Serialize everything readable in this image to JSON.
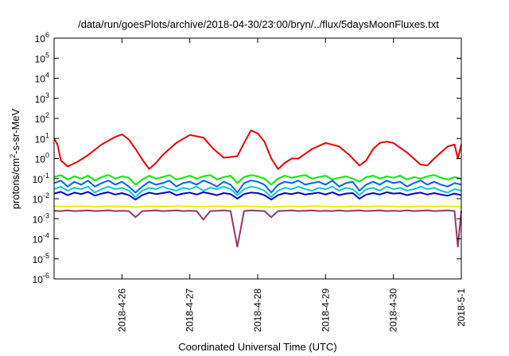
{
  "chart_data": {
    "type": "line",
    "title": "/data/run/goesPlots/archive/2018-04-30/23:00/bryn/../flux/5daysMoonFluxes.txt",
    "xlabel": "Coordinated Universal Time (UTC)",
    "ylabel": {
      "prefix": "protons/cm",
      "sup": "2",
      "suffix": "-s-sr-MeV"
    },
    "yscale": "log",
    "ylim_exp": [
      -6,
      6
    ],
    "y_tick_exponents": [
      -6,
      -5,
      -4,
      -3,
      -2,
      -1,
      0,
      1,
      2,
      3,
      4,
      5,
      6
    ],
    "x_ticks": [
      "2018-4-26",
      "2018-4-27",
      "2018-4-28",
      "2018-4-29",
      "2018-4-30",
      "2018-5-1"
    ],
    "xlim": [
      "2018-04-25T00:00",
      "2018-05-01T00:00"
    ],
    "grid": false,
    "legend": false,
    "series": [
      {
        "color": "#ee0000",
        "x": [
          25.0,
          25.05,
          25.1,
          25.2,
          25.35,
          25.5,
          25.7,
          25.9,
          26.0,
          26.1,
          26.2,
          26.3,
          26.4,
          26.5,
          26.6,
          26.8,
          27.0,
          27.2,
          27.35,
          27.5,
          27.7,
          27.8,
          27.9,
          28.0,
          28.1,
          28.2,
          28.3,
          28.4,
          28.5,
          28.6,
          28.8,
          29.0,
          29.2,
          29.35,
          29.5,
          29.6,
          29.7,
          29.8,
          29.9,
          30.0,
          30.2,
          30.4,
          30.5,
          30.6,
          30.8,
          30.9,
          30.95,
          31.0
        ],
        "y": [
          10.0,
          5.0,
          0.8,
          0.4,
          0.7,
          1.5,
          5.0,
          12.0,
          16.0,
          9.0,
          3.0,
          0.9,
          0.3,
          0.6,
          1.5,
          6.0,
          15.0,
          11.0,
          3.0,
          1.1,
          1.3,
          6.0,
          25.0,
          18.0,
          7.0,
          1.0,
          0.3,
          0.6,
          1.0,
          1.0,
          3.0,
          6.0,
          4.0,
          1.5,
          0.45,
          0.8,
          3.0,
          6.0,
          7.0,
          6.0,
          2.0,
          0.5,
          0.45,
          1.0,
          4.0,
          5.0,
          1.0,
          5.0
        ]
      },
      {
        "color": "#00ee00",
        "x": [
          25.0,
          25.1,
          25.2,
          25.3,
          25.4,
          25.5,
          25.6,
          25.7,
          25.8,
          25.9,
          26.0,
          26.1,
          26.2,
          26.3,
          26.4,
          26.5,
          26.6,
          26.7,
          26.8,
          26.9,
          27.0,
          27.1,
          27.2,
          27.3,
          27.4,
          27.5,
          27.6,
          27.7,
          27.8,
          27.9,
          28.0,
          28.1,
          28.2,
          28.3,
          28.4,
          28.5,
          28.6,
          28.7,
          28.8,
          28.9,
          29.0,
          29.1,
          29.2,
          29.3,
          29.4,
          29.5,
          29.6,
          29.7,
          29.8,
          29.9,
          30.0,
          30.1,
          30.2,
          30.3,
          30.4,
          30.5,
          30.6,
          30.7,
          30.8,
          30.9,
          31.0
        ],
        "y": [
          0.12,
          0.15,
          0.09,
          0.13,
          0.1,
          0.14,
          0.08,
          0.12,
          0.15,
          0.1,
          0.13,
          0.11,
          0.05,
          0.09,
          0.14,
          0.1,
          0.12,
          0.15,
          0.09,
          0.11,
          0.14,
          0.1,
          0.13,
          0.15,
          0.09,
          0.12,
          0.14,
          0.06,
          0.12,
          0.15,
          0.13,
          0.1,
          0.05,
          0.1,
          0.14,
          0.11,
          0.13,
          0.15,
          0.1,
          0.12,
          0.14,
          0.09,
          0.11,
          0.13,
          0.1,
          0.07,
          0.12,
          0.14,
          0.1,
          0.13,
          0.11,
          0.14,
          0.09,
          0.12,
          0.1,
          0.13,
          0.15,
          0.11,
          0.09,
          0.12,
          0.1
        ]
      },
      {
        "color": "#00cccc",
        "x": [
          25.0,
          25.1,
          25.2,
          25.3,
          25.4,
          25.5,
          25.6,
          25.7,
          25.8,
          25.9,
          26.0,
          26.1,
          26.2,
          26.3,
          26.4,
          26.5,
          26.6,
          26.7,
          26.8,
          26.9,
          27.0,
          27.1,
          27.2,
          27.3,
          27.4,
          27.5,
          27.6,
          27.7,
          27.8,
          27.9,
          28.0,
          28.1,
          28.2,
          28.3,
          28.4,
          28.5,
          28.6,
          28.7,
          28.8,
          28.9,
          29.0,
          29.1,
          29.2,
          29.3,
          29.4,
          29.5,
          29.6,
          29.7,
          29.8,
          29.9,
          30.0,
          30.1,
          30.2,
          30.3,
          30.4,
          30.5,
          30.6,
          30.7,
          30.8,
          30.9,
          31.0
        ],
        "y": [
          0.03,
          0.04,
          0.025,
          0.035,
          0.03,
          0.04,
          0.02,
          0.03,
          0.04,
          0.03,
          0.035,
          0.025,
          0.012,
          0.025,
          0.035,
          0.03,
          0.04,
          0.03,
          0.025,
          0.035,
          0.03,
          0.04,
          0.025,
          0.035,
          0.03,
          0.04,
          0.03,
          0.015,
          0.03,
          0.04,
          0.035,
          0.025,
          0.012,
          0.025,
          0.035,
          0.03,
          0.04,
          0.03,
          0.025,
          0.035,
          0.03,
          0.04,
          0.025,
          0.035,
          0.03,
          0.015,
          0.03,
          0.035,
          0.025,
          0.04,
          0.03,
          0.035,
          0.025,
          0.03,
          0.04,
          0.03,
          0.035,
          0.025,
          0.02,
          0.03,
          0.025
        ]
      },
      {
        "color": "#0060ff",
        "x": [
          25.0,
          25.1,
          25.2,
          25.3,
          25.4,
          25.5,
          25.6,
          25.7,
          25.8,
          25.9,
          26.0,
          26.1,
          26.2,
          26.3,
          26.4,
          26.5,
          26.6,
          26.7,
          26.8,
          26.9,
          27.0,
          27.1,
          27.2,
          27.3,
          27.4,
          27.5,
          27.6,
          27.7,
          27.8,
          27.9,
          28.0,
          28.1,
          28.2,
          28.3,
          28.4,
          28.5,
          28.6,
          28.7,
          28.8,
          28.9,
          29.0,
          29.1,
          29.2,
          29.3,
          29.4,
          29.5,
          29.6,
          29.7,
          29.8,
          29.9,
          30.0,
          30.1,
          30.2,
          30.3,
          30.4,
          30.5,
          30.6,
          30.7,
          30.8,
          30.9,
          31.0
        ],
        "y": [
          0.06,
          0.08,
          0.04,
          0.07,
          0.05,
          0.08,
          0.04,
          0.06,
          0.08,
          0.05,
          0.07,
          0.04,
          0.02,
          0.04,
          0.07,
          0.05,
          0.06,
          0.08,
          0.04,
          0.06,
          0.07,
          0.05,
          0.08,
          0.06,
          0.04,
          0.07,
          0.05,
          0.02,
          0.06,
          0.08,
          0.07,
          0.05,
          0.02,
          0.05,
          0.07,
          0.06,
          0.08,
          0.05,
          0.06,
          0.07,
          0.05,
          0.08,
          0.04,
          0.06,
          0.07,
          0.025,
          0.05,
          0.07,
          0.05,
          0.08,
          0.06,
          0.07,
          0.04,
          0.06,
          0.08,
          0.05,
          0.07,
          0.05,
          0.04,
          0.06,
          0.05
        ]
      },
      {
        "color": "#0000cc",
        "x": [
          25.0,
          25.1,
          25.2,
          25.3,
          25.4,
          25.5,
          25.6,
          25.7,
          25.8,
          25.9,
          26.0,
          26.1,
          26.2,
          26.3,
          26.4,
          26.5,
          26.6,
          26.7,
          26.8,
          26.9,
          27.0,
          27.1,
          27.2,
          27.3,
          27.4,
          27.5,
          27.6,
          27.7,
          27.8,
          27.9,
          28.0,
          28.1,
          28.2,
          28.3,
          28.4,
          28.5,
          28.6,
          28.7,
          28.8,
          28.9,
          29.0,
          29.1,
          29.2,
          29.3,
          29.4,
          29.5,
          29.6,
          29.7,
          29.8,
          29.9,
          30.0,
          30.1,
          30.2,
          30.3,
          30.4,
          30.5,
          30.6,
          30.7,
          30.8,
          30.9,
          31.0
        ],
        "y": [
          0.018,
          0.022,
          0.015,
          0.02,
          0.017,
          0.022,
          0.014,
          0.018,
          0.021,
          0.016,
          0.019,
          0.015,
          0.009,
          0.015,
          0.02,
          0.017,
          0.019,
          0.022,
          0.015,
          0.018,
          0.02,
          0.016,
          0.021,
          0.018,
          0.015,
          0.019,
          0.017,
          0.01,
          0.017,
          0.02,
          0.019,
          0.015,
          0.009,
          0.015,
          0.019,
          0.017,
          0.02,
          0.016,
          0.018,
          0.02,
          0.016,
          0.021,
          0.015,
          0.018,
          0.019,
          0.01,
          0.016,
          0.019,
          0.016,
          0.021,
          0.018,
          0.019,
          0.015,
          0.018,
          0.02,
          0.016,
          0.019,
          0.016,
          0.014,
          0.018,
          0.015
        ]
      },
      {
        "color": "#eeee00",
        "x": [
          25.0,
          25.2,
          25.4,
          25.6,
          25.8,
          26.0,
          26.2,
          26.4,
          26.6,
          26.8,
          27.0,
          27.2,
          27.4,
          27.6,
          27.8,
          28.0,
          28.2,
          28.4,
          28.6,
          28.8,
          29.0,
          29.2,
          29.4,
          29.6,
          29.8,
          30.0,
          30.2,
          30.4,
          30.6,
          30.8,
          31.0
        ],
        "y": [
          0.0042,
          0.004,
          0.0043,
          0.0039,
          0.0042,
          0.0041,
          0.0038,
          0.0042,
          0.004,
          0.0043,
          0.0041,
          0.0039,
          0.0042,
          0.004,
          0.0043,
          0.0041,
          0.0038,
          0.0042,
          0.004,
          0.0043,
          0.0041,
          0.0039,
          0.0042,
          0.004,
          0.0043,
          0.0041,
          0.0039,
          0.0042,
          0.004,
          0.0042,
          0.004
        ]
      },
      {
        "color": "#993366",
        "x": [
          25.0,
          25.1,
          25.2,
          25.3,
          25.4,
          25.5,
          25.6,
          25.7,
          25.8,
          25.9,
          26.0,
          26.1,
          26.2,
          26.3,
          26.4,
          26.5,
          26.6,
          26.7,
          26.8,
          26.9,
          27.0,
          27.1,
          27.2,
          27.3,
          27.4,
          27.5,
          27.6,
          27.7,
          27.8,
          27.9,
          28.0,
          28.1,
          28.2,
          28.3,
          28.4,
          28.5,
          28.6,
          28.7,
          28.8,
          28.9,
          29.0,
          29.1,
          29.2,
          29.3,
          29.4,
          29.5,
          29.6,
          29.7,
          29.8,
          29.9,
          30.0,
          30.1,
          30.2,
          30.3,
          30.4,
          30.5,
          30.6,
          30.7,
          30.8,
          30.9,
          30.95,
          31.0
        ],
        "y": [
          0.0025,
          0.0024,
          0.0026,
          0.0024,
          0.0025,
          0.0026,
          0.0024,
          0.0025,
          0.0026,
          0.0024,
          0.0025,
          0.0024,
          0.0012,
          0.0024,
          0.0025,
          0.0026,
          0.0024,
          0.0025,
          0.0026,
          0.0024,
          0.0025,
          0.0024,
          0.0009,
          0.0024,
          0.0025,
          0.0026,
          0.0024,
          4e-05,
          0.0024,
          0.0026,
          0.0025,
          0.0024,
          0.0012,
          0.0024,
          0.0025,
          0.0026,
          0.0024,
          0.0025,
          0.0026,
          0.0024,
          0.0025,
          0.0024,
          0.0026,
          0.0024,
          0.0025,
          0.0026,
          0.0024,
          0.0025,
          0.0026,
          0.0024,
          0.0025,
          0.0024,
          0.0026,
          0.0024,
          0.0025,
          0.0026,
          0.0024,
          0.0025,
          0.0026,
          0.0024,
          4e-05,
          0.0025
        ]
      }
    ]
  }
}
